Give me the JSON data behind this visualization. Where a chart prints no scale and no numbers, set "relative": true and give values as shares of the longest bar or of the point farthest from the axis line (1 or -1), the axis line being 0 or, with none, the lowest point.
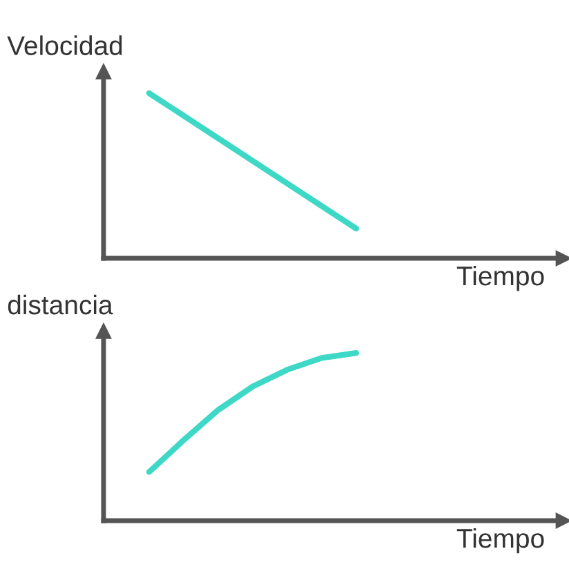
{
  "chart_data": [
    {
      "type": "line",
      "relative": true,
      "xlabel": "Tiempo",
      "ylabel": "Velocidad",
      "categories": [
        null,
        null,
        null,
        null,
        null,
        null,
        null,
        null,
        null,
        null,
        null,
        null,
        null
      ],
      "series": [
        {
          "color": "#3dd9c6",
          "values": [
            null,
            1,
            null,
            null,
            null,
            null,
            null,
            0.18,
            null,
            null,
            null,
            null,
            null
          ]
        }
      ]
    },
    {
      "type": "line",
      "relative": true,
      "xlabel": "Tiempo",
      "ylabel": "distancia",
      "categories": [
        null,
        null,
        null,
        null,
        null,
        null,
        null,
        null,
        null,
        null,
        null,
        null,
        null
      ],
      "series": [
        {
          "color": "#3dd9c6",
          "values": [
            null,
            0.29,
            0.48,
            0.66,
            0.8,
            0.9,
            0.97,
            1.0,
            null,
            null,
            null,
            null,
            null
          ]
        }
      ]
    }
  ]
}
